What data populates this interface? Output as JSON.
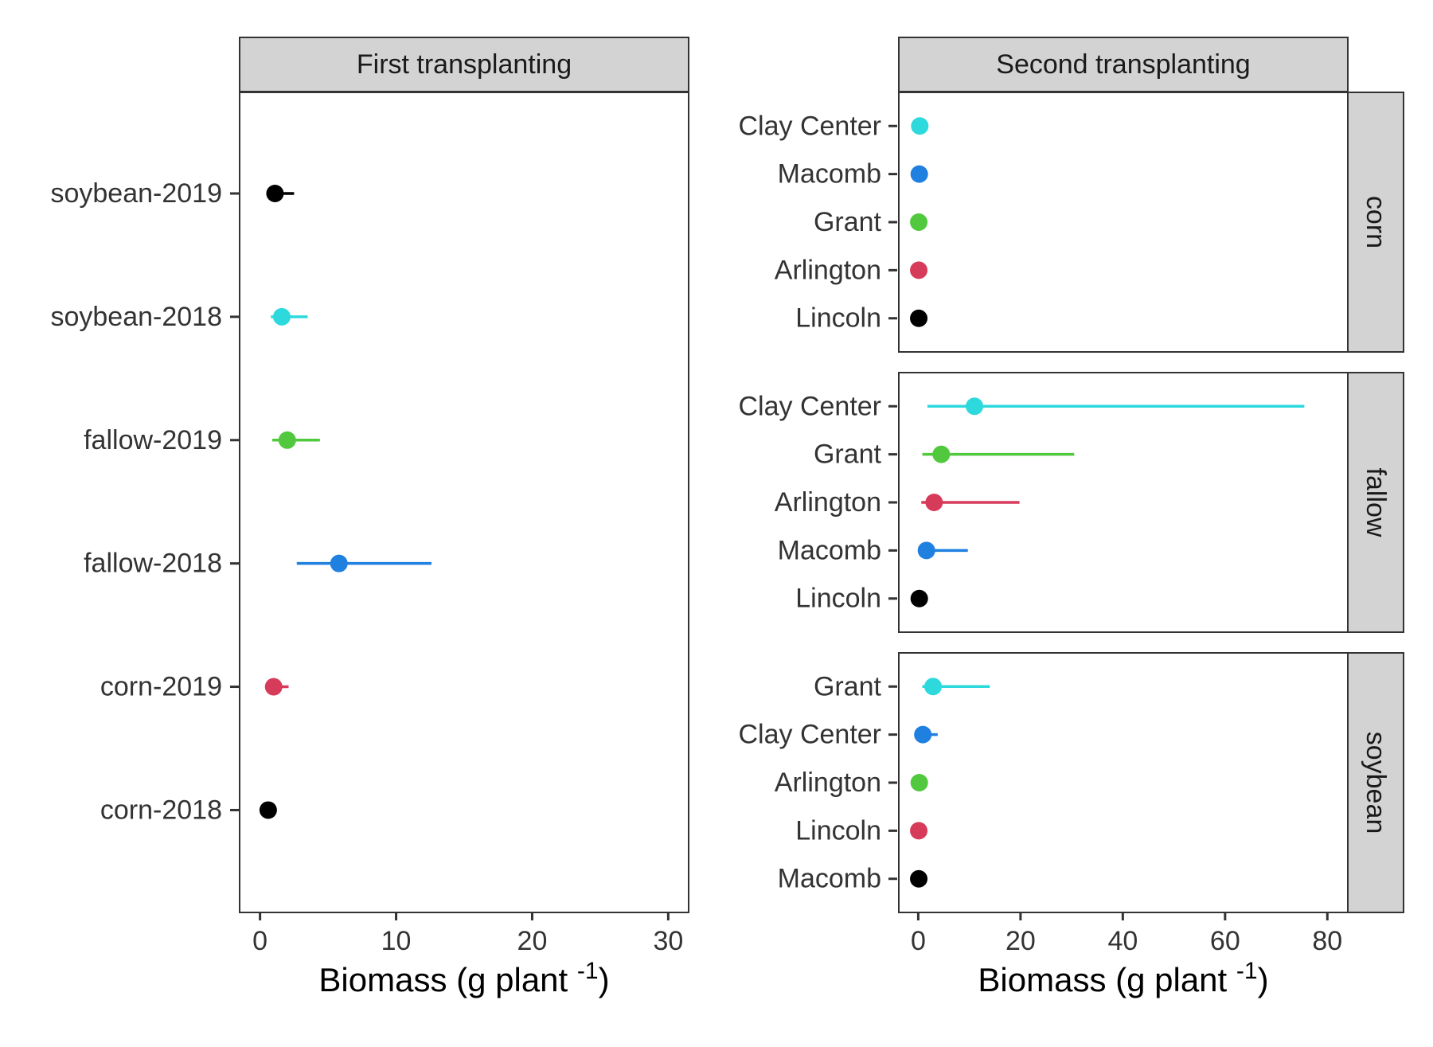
{
  "chart_data": [
    {
      "type": "scatter",
      "strip_title": "First transplanting",
      "xlabel": "Biomass (g plant",
      "xlabel_sup": "-1",
      "xlabel_close": ")",
      "xlim": [
        -1.5,
        31.5
      ],
      "xticks": [
        "0",
        "10",
        "20",
        "30"
      ],
      "xtick_values": [
        0,
        10,
        20,
        30
      ],
      "grid": false,
      "categories": [
        "soybean-2019",
        "soybean-2018",
        "fallow-2019",
        "fallow-2018",
        "corn-2019",
        "corn-2018"
      ],
      "points": [
        {
          "label": "soybean-2019",
          "mean": 1.1,
          "low": 1.0,
          "high": 2.5,
          "color": "#000000"
        },
        {
          "label": "soybean-2018",
          "mean": 1.6,
          "low": 0.8,
          "high": 3.5,
          "color": "#2dd9dc"
        },
        {
          "label": "fallow-2019",
          "mean": 2.0,
          "low": 0.9,
          "high": 4.4,
          "color": "#52c83f"
        },
        {
          "label": "fallow-2018",
          "mean": 5.8,
          "low": 2.7,
          "high": 12.6,
          "color": "#1f80e0"
        },
        {
          "label": "corn-2019",
          "mean": 1.0,
          "low": 0.5,
          "high": 2.1,
          "color": "#d63c5a"
        },
        {
          "label": "corn-2018",
          "mean": 0.6,
          "low": 0.4,
          "high": 1.0,
          "color": "#000000"
        }
      ]
    },
    {
      "type": "scatter",
      "strip_title": "Second transplanting",
      "xlabel": "Biomass (g plant",
      "xlabel_sup": "-1",
      "xlabel_close": ")",
      "xlim": [
        -3.8,
        84
      ],
      "xticks": [
        "0",
        "20",
        "40",
        "60",
        "80"
      ],
      "xtick_values": [
        0,
        20,
        40,
        60,
        80
      ],
      "grid": false,
      "facets": [
        {
          "name": "corn",
          "categories": [
            "Clay Center",
            "Macomb",
            "Grant",
            "Arlington",
            "Lincoln"
          ],
          "points": [
            {
              "label": "Clay Center",
              "mean": 0.3,
              "low": 0.1,
              "high": 0.6,
              "color": "#2dd9dc"
            },
            {
              "label": "Macomb",
              "mean": 0.2,
              "low": 0.1,
              "high": 0.4,
              "color": "#1f80e0"
            },
            {
              "label": "Grant",
              "mean": 0.1,
              "low": 0.0,
              "high": 0.3,
              "color": "#52c83f"
            },
            {
              "label": "Arlington",
              "mean": 0.1,
              "low": 0.0,
              "high": 0.3,
              "color": "#d63c5a"
            },
            {
              "label": "Lincoln",
              "mean": 0.1,
              "low": 0.0,
              "high": 0.2,
              "color": "#000000"
            }
          ]
        },
        {
          "name": "fallow",
          "categories": [
            "Clay Center",
            "Grant",
            "Arlington",
            "Macomb",
            "Lincoln"
          ],
          "points": [
            {
              "label": "Clay Center",
              "mean": 11.0,
              "low": 1.8,
              "high": 75.5,
              "color": "#2dd9dc"
            },
            {
              "label": "Grant",
              "mean": 4.5,
              "low": 0.8,
              "high": 30.5,
              "color": "#52c83f"
            },
            {
              "label": "Arlington",
              "mean": 3.1,
              "low": 0.6,
              "high": 19.8,
              "color": "#d63c5a"
            },
            {
              "label": "Macomb",
              "mean": 1.6,
              "low": 0.5,
              "high": 9.7,
              "color": "#1f80e0"
            },
            {
              "label": "Lincoln",
              "mean": 0.2,
              "low": 0.0,
              "high": 0.4,
              "color": "#000000"
            }
          ]
        },
        {
          "name": "soybean",
          "categories": [
            "Grant",
            "Clay Center",
            "Arlington",
            "Lincoln",
            "Macomb"
          ],
          "points": [
            {
              "label": "Grant",
              "mean": 2.9,
              "low": 0.8,
              "high": 14.0,
              "color": "#2dd9dc"
            },
            {
              "label": "Clay Center",
              "mean": 0.9,
              "low": 0.3,
              "high": 3.8,
              "color": "#1f80e0"
            },
            {
              "label": "Arlington",
              "mean": 0.2,
              "low": 0.0,
              "high": 0.4,
              "color": "#52c83f"
            },
            {
              "label": "Lincoln",
              "mean": 0.1,
              "low": 0.0,
              "high": 0.3,
              "color": "#d63c5a"
            },
            {
              "label": "Macomb",
              "mean": 0.1,
              "low": 0.0,
              "high": 0.2,
              "color": "#000000"
            }
          ]
        }
      ]
    }
  ]
}
